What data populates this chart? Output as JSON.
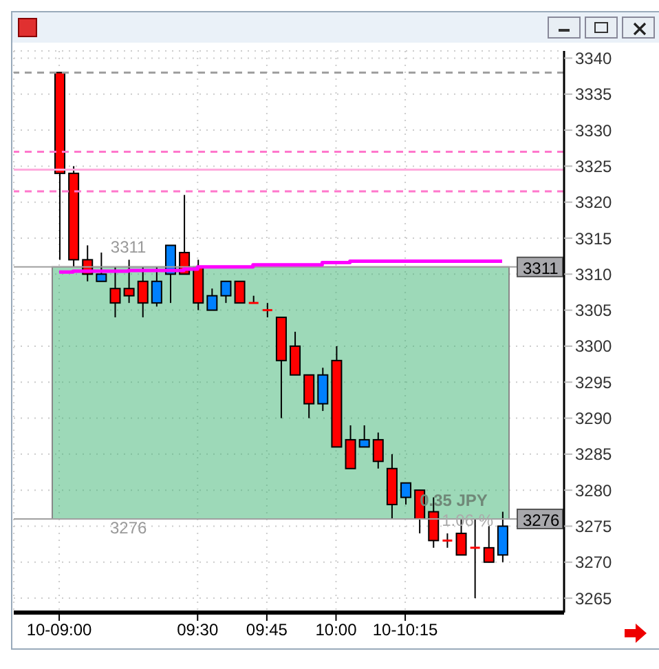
{
  "chart_data": {
    "type": "candlestick",
    "categories": [
      "10-09:00",
      null,
      null,
      null,
      null,
      null,
      null,
      null,
      null,
      null,
      "09:30",
      null,
      null,
      null,
      null,
      "09:45",
      null,
      null,
      null,
      null,
      "10:00",
      null,
      null,
      null,
      null,
      "10-10:15",
      null,
      null,
      null,
      null,
      null,
      null,
      null
    ],
    "ohlc": [
      [
        3338,
        3338,
        3312,
        3324
      ],
      [
        3324,
        3325,
        3311,
        3312
      ],
      [
        3312,
        3314,
        3309,
        3310
      ],
      [
        3309,
        3313,
        3309,
        3310
      ],
      [
        3308,
        3311,
        3304,
        3306
      ],
      [
        3308,
        3312,
        3306,
        3307
      ],
      [
        3309,
        3311,
        3304,
        3306
      ],
      [
        3306,
        3311,
        3305.5,
        3309
      ],
      [
        3310,
        3314,
        3306,
        3314
      ],
      [
        3313,
        3321,
        3310,
        3310
      ],
      [
        3311,
        3312,
        3305,
        3306
      ],
      [
        3305,
        3308,
        3305,
        3307
      ],
      [
        3307,
        3309,
        3306,
        3309
      ],
      [
        3309,
        3309,
        3306,
        3306
      ],
      [
        3306,
        3307,
        3306,
        3306
      ],
      [
        3305,
        3306,
        3304,
        3305
      ],
      [
        3304,
        3304,
        3290,
        3298
      ],
      [
        3300,
        3302,
        3296,
        3296
      ],
      [
        3296,
        3296,
        3290,
        3292
      ],
      [
        3292,
        3297,
        3291,
        3296
      ],
      [
        3298,
        3300,
        3286,
        3286
      ],
      [
        3287,
        3289,
        3283,
        3283
      ],
      [
        3286,
        3289,
        3286,
        3287
      ],
      [
        3287,
        3288,
        3283,
        3284
      ],
      [
        3283,
        3285,
        3276,
        3278
      ],
      [
        3279,
        3281,
        3278,
        3281
      ],
      [
        3280,
        3280,
        3274,
        3276
      ],
      [
        3277,
        3279,
        3272,
        3273
      ],
      [
        3273,
        3274,
        3272,
        3273
      ],
      [
        3274,
        3276,
        3271,
        3271
      ],
      [
        3272,
        3276,
        3265,
        3272
      ],
      [
        3272,
        3275,
        3270,
        3270
      ],
      [
        3271,
        3277,
        3270,
        3275
      ]
    ],
    "colors": [
      "#ff0000",
      "#ff0000",
      "#ff0000",
      "#0080ff",
      "#ff0000",
      "#ff0000",
      "#ff0000",
      "#0080ff",
      "#0080ff",
      "#ff0000",
      "#ff0000",
      "#0080ff",
      "#0080ff",
      "#ff0000",
      "#ff0000",
      "#ff0000",
      "#ff0000",
      "#ff0000",
      "#ff0000",
      "#0080ff",
      "#ff0000",
      "#ff0000",
      "#0080ff",
      "#ff0000",
      "#ff0000",
      "#0080ff",
      "#ff0000",
      "#ff0000",
      "#ff0000",
      "#ff0000",
      "#ff0000",
      "#ff0000",
      "#0080ff"
    ],
    "series": [
      {
        "type": "step",
        "color": "#ff00ff",
        "values": [
          3310.3,
          3310.4,
          3310.4,
          3310.4,
          3310.4,
          3310.5,
          3310.5,
          3310.5,
          3310.5,
          3310.7,
          3311.0,
          3311.0,
          3311.0,
          3311.0,
          3311.3,
          3311.3,
          3311.3,
          3311.3,
          3311.3,
          3311.6,
          3311.6,
          3311.8,
          3311.8,
          3311.8,
          3311.8,
          3311.8,
          3311.8,
          3311.8,
          3311.8,
          3311.8,
          3311.8,
          3311.8,
          3311.8
        ]
      }
    ],
    "ylim": [
      3263,
      3341
    ],
    "yticks": [
      3265,
      3270,
      3275,
      3280,
      3285,
      3290,
      3295,
      3300,
      3305,
      3310,
      3315,
      3320,
      3325,
      3330,
      3335,
      3340
    ],
    "grid": true,
    "ref_lines": [
      {
        "axis": "y",
        "value": 3338,
        "color": "#a0a0a0",
        "line_style": "dashed"
      },
      {
        "axis": "y",
        "value": 3327,
        "color": "#ff77cc",
        "line_style": "dashed"
      },
      {
        "axis": "y",
        "value": 3324.5,
        "color": "#ffaadd",
        "line_style": "solid"
      },
      {
        "axis": "y",
        "value": 3321.5,
        "color": "#ff77cc",
        "line_style": "dashed"
      },
      {
        "axis": "y",
        "value": 3311,
        "label": "3311",
        "color": "#a0a0a0",
        "line_style": "solid"
      },
      {
        "axis": "y",
        "value": 3276,
        "label": "3276",
        "color": "#a0a0a0",
        "line_style": "solid"
      }
    ],
    "bands": [
      {
        "axis": "y",
        "from": 3276,
        "to": 3311,
        "color": "#3cb371"
      }
    ],
    "annotations": [
      "3311",
      "3276",
      "0.35 JPY",
      "1.06 %"
    ]
  }
}
